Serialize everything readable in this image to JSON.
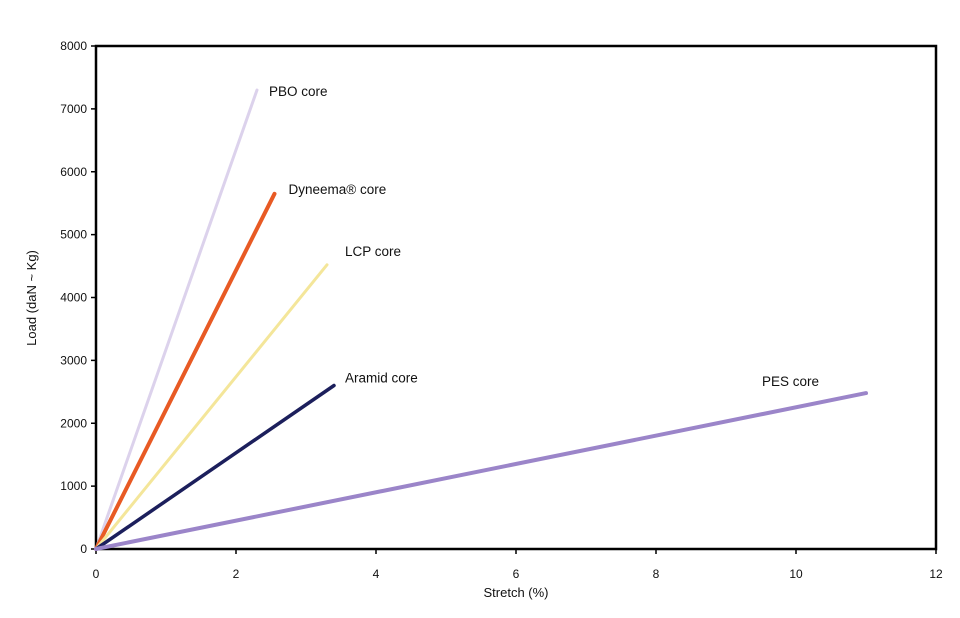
{
  "chart_data": {
    "type": "line",
    "title": "",
    "xlabel": "Stretch (%)",
    "ylabel": "Load (daN ~ Kg)",
    "xlim": [
      0,
      12
    ],
    "ylim": [
      0,
      8000
    ],
    "xticks": [
      "0",
      "2",
      "4",
      "6",
      "8",
      "10",
      "12"
    ],
    "yticks": [
      "0",
      "1000",
      "2000",
      "3000",
      "4000",
      "5000",
      "6000",
      "7000",
      "8000"
    ],
    "grid": false,
    "legend": "inline labels at line ends",
    "series": [
      {
        "name": "PBO core",
        "color": "#dcd2ec",
        "x": [
          0,
          2.3
        ],
        "y": [
          0,
          7300
        ]
      },
      {
        "name": "Dyneema® core",
        "color": "#e85a24",
        "x": [
          0,
          2.55
        ],
        "y": [
          0,
          5650
        ]
      },
      {
        "name": "LCP core",
        "color": "#f4e69a",
        "x": [
          0,
          3.3
        ],
        "y": [
          0,
          4520
        ]
      },
      {
        "name": "Aramid core",
        "color": "#1c1f5c",
        "x": [
          0,
          3.4
        ],
        "y": [
          0,
          2600
        ]
      },
      {
        "name": "PES core",
        "color": "#9b85c9",
        "x": [
          0,
          11.0
        ],
        "y": [
          0,
          2480
        ]
      }
    ]
  }
}
